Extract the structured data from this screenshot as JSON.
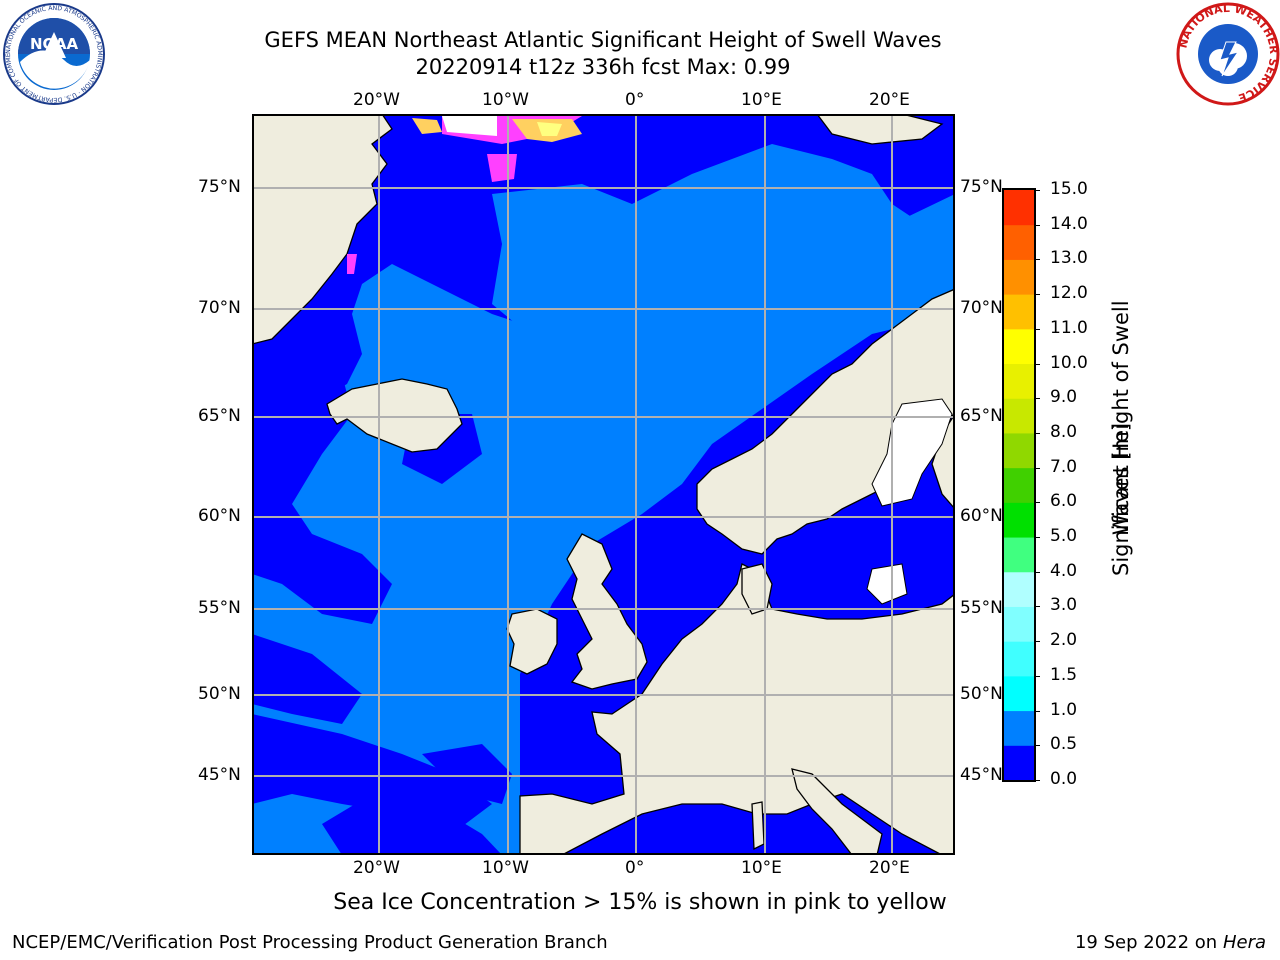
{
  "header": {
    "title_line1": "GEFS MEAN Northeast Atlantic Significant Height of Swell Waves",
    "title_line2": "20220914 t12z 336h fcst   Max: 0.99"
  },
  "logos": {
    "left": "NOAA",
    "left_ring": "NATIONAL OCEANIC AND ATMOSPHERIC ADMINISTRATION · U.S. DEPARTMENT OF COMMERCE",
    "right_ring": "NATIONAL WEATHER SERVICE"
  },
  "map": {
    "lon_labels": [
      "20°W",
      "10°W",
      "0°",
      "10°E",
      "20°E"
    ],
    "lat_labels": [
      "75°N",
      "70°N",
      "65°N",
      "60°N",
      "55°N",
      "50°N",
      "45°N"
    ],
    "colors": {
      "land": "#efedde",
      "ocean_low": "#0000ff",
      "ocean_mid": "#0080ff",
      "grid": "#b0b0b0",
      "ice": "#ff40ff"
    }
  },
  "colorbar": {
    "title_line1": "Significant Height of Swell",
    "title_line2": "Waves [m]",
    "ticks": [
      "0.0",
      "0.5",
      "1.0",
      "1.5",
      "2.0",
      "3.0",
      "4.0",
      "5.0",
      "6.0",
      "7.0",
      "8.0",
      "9.0",
      "10.0",
      "11.0",
      "12.0",
      "13.0",
      "14.0",
      "15.0"
    ],
    "colors": [
      "#0000ff",
      "#0080ff",
      "#00ffff",
      "#40ffff",
      "#80ffff",
      "#b0ffff",
      "#40ff80",
      "#00e000",
      "#40d000",
      "#90d800",
      "#c8e800",
      "#e8f000",
      "#ffff00",
      "#ffc000",
      "#ff9000",
      "#ff6000",
      "#ff3000"
    ]
  },
  "caption": "Sea Ice Concentration > 15% is shown in pink to yellow",
  "footer": {
    "left": "NCEP/EMC/Verification Post Processing Product Generation Branch",
    "date": "19 Sep 2022 on",
    "machine": "Hera"
  }
}
